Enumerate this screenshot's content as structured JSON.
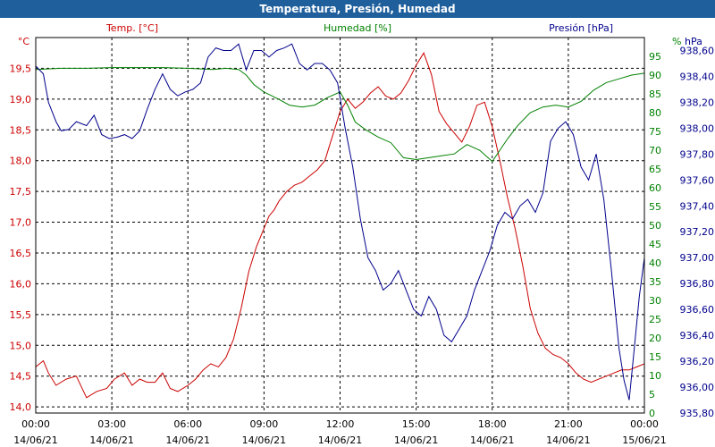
{
  "title": "Temperatura, Presión, Humedad",
  "chart_data": {
    "type": "line",
    "axes": {
      "temp": {
        "label": "Temp. [°C]",
        "unit": "°C",
        "min": 13.9,
        "max": 20.0,
        "ticks": [
          "14,0",
          "14,5",
          "15,0",
          "15,5",
          "16,0",
          "16,5",
          "17,0",
          "17,5",
          "18,0",
          "18,5",
          "19,0",
          "19,5"
        ],
        "tick_values": [
          14.0,
          14.5,
          15.0,
          15.5,
          16.0,
          16.5,
          17.0,
          17.5,
          18.0,
          18.5,
          19.0,
          19.5
        ],
        "color": "#cc0000"
      },
      "hum": {
        "label": "Humedad [%]",
        "unit": "%",
        "min": 0,
        "max": 100,
        "ticks": [
          "0",
          "5",
          "10",
          "15",
          "20",
          "25",
          "30",
          "35",
          "40",
          "45",
          "50",
          "55",
          "60",
          "65",
          "70",
          "75",
          "80",
          "85",
          "90",
          "95"
        ],
        "tick_values": [
          0,
          5,
          10,
          15,
          20,
          25,
          30,
          35,
          40,
          45,
          50,
          55,
          60,
          65,
          70,
          75,
          80,
          85,
          90,
          95
        ],
        "color": "#008000"
      },
      "pres": {
        "label": "Presión [hPa]",
        "unit": "hPa",
        "min": 935.8,
        "max": 938.7,
        "ticks": [
          "935,80",
          "936,00",
          "936,20",
          "936,40",
          "936,60",
          "936,80",
          "937,00",
          "937,20",
          "937,40",
          "937,60",
          "937,80",
          "938,00",
          "938,20",
          "938,40",
          "938,60"
        ],
        "tick_values": [
          935.8,
          936.0,
          936.2,
          936.4,
          936.6,
          936.8,
          937.0,
          937.2,
          937.4,
          937.6,
          937.8,
          938.0,
          938.2,
          938.4,
          938.6
        ],
        "color": "#00008b"
      }
    },
    "x_ticks": [
      {
        "time": "00:00",
        "date": "14/06/21",
        "h": 0
      },
      {
        "time": "03:00",
        "date": "14/06/21",
        "h": 3
      },
      {
        "time": "06:00",
        "date": "14/06/21",
        "h": 6
      },
      {
        "time": "09:00",
        "date": "14/06/21",
        "h": 9
      },
      {
        "time": "12:00",
        "date": "14/06/21",
        "h": 12
      },
      {
        "time": "15:00",
        "date": "14/06/21",
        "h": 15
      },
      {
        "time": "18:00",
        "date": "14/06/21",
        "h": 18
      },
      {
        "time": "21:00",
        "date": "14/06/21",
        "h": 21
      },
      {
        "time": "00:00",
        "date": "15/06/21",
        "h": 24
      }
    ],
    "grid": true,
    "series": [
      {
        "name": "Temp. [°C]",
        "axis": "temp",
        "color": "#cc0000",
        "x": [
          0,
          0.3,
          0.5,
          0.8,
          1.2,
          1.6,
          2.0,
          2.4,
          2.8,
          3.1,
          3.5,
          3.8,
          4.1,
          4.4,
          4.7,
          5.0,
          5.3,
          5.6,
          6.0,
          6.3,
          6.6,
          6.9,
          7.2,
          7.5,
          7.8,
          8.1,
          8.4,
          8.7,
          9.0,
          9.2,
          9.4,
          9.6,
          9.9,
          10.2,
          10.5,
          10.8,
          11.1,
          11.4,
          11.7,
          12.0,
          12.3,
          12.6,
          12.9,
          13.2,
          13.5,
          13.8,
          14.1,
          14.4,
          14.7,
          15.0,
          15.3,
          15.6,
          15.9,
          16.2,
          16.5,
          16.8,
          17.1,
          17.4,
          17.7,
          18.0,
          18.3,
          18.6,
          18.9,
          19.2,
          19.5,
          19.8,
          20.1,
          20.4,
          20.7,
          21.0,
          21.3,
          21.6,
          21.9,
          22.2,
          22.5,
          22.8,
          23.1,
          23.4,
          23.7,
          24.0
        ],
        "y": [
          14.65,
          14.75,
          14.55,
          14.35,
          14.45,
          14.5,
          14.15,
          14.25,
          14.3,
          14.45,
          14.55,
          14.35,
          14.45,
          14.4,
          14.4,
          14.55,
          14.3,
          14.25,
          14.35,
          14.45,
          14.6,
          14.7,
          14.65,
          14.8,
          15.1,
          15.6,
          16.2,
          16.6,
          16.9,
          17.1,
          17.2,
          17.35,
          17.5,
          17.6,
          17.65,
          17.75,
          17.85,
          18.0,
          18.4,
          18.8,
          19.0,
          18.85,
          18.95,
          19.1,
          19.2,
          19.05,
          19.0,
          19.1,
          19.3,
          19.55,
          19.75,
          19.4,
          18.8,
          18.6,
          18.45,
          18.3,
          18.55,
          18.9,
          18.95,
          18.55,
          18.0,
          17.4,
          16.9,
          16.3,
          15.6,
          15.2,
          14.95,
          14.85,
          14.8,
          14.7,
          14.55,
          14.45,
          14.4,
          14.45,
          14.5,
          14.55,
          14.6,
          14.6,
          14.65,
          14.7
        ]
      },
      {
        "name": "Humedad [%]",
        "axis": "hum",
        "color": "#008000",
        "x": [
          0,
          1,
          2,
          3,
          4,
          5,
          6,
          7,
          7.5,
          8.0,
          8.3,
          8.6,
          9.0,
          9.3,
          9.6,
          10.0,
          10.5,
          11.0,
          11.5,
          12.0,
          12.3,
          12.6,
          13.0,
          13.5,
          14.0,
          14.5,
          15.0,
          15.5,
          16.0,
          16.5,
          17.0,
          17.5,
          18.0,
          18.3,
          18.6,
          19.0,
          19.5,
          20.0,
          20.5,
          21.0,
          21.5,
          22.0,
          22.5,
          23.0,
          23.5,
          24.0
        ],
        "y": [
          91.5,
          91.8,
          91.8,
          92.0,
          92.0,
          92.0,
          91.8,
          91.5,
          91.8,
          91.5,
          90.0,
          87.5,
          85.5,
          84.5,
          83.5,
          82.0,
          81.5,
          82.0,
          84.0,
          85.5,
          82.0,
          77.5,
          75.5,
          73.5,
          72.0,
          68.0,
          67.5,
          68.0,
          68.5,
          69.0,
          71.5,
          70.0,
          67.0,
          70.0,
          73.0,
          76.5,
          80.0,
          81.5,
          82.0,
          81.5,
          83.0,
          86.0,
          88.0,
          89.0,
          90.0,
          90.5
        ]
      },
      {
        "name": "Presión [hPa]",
        "axis": "pres",
        "color": "#00008b",
        "x": [
          0,
          0.3,
          0.5,
          0.8,
          1.0,
          1.3,
          1.6,
          2.0,
          2.3,
          2.6,
          2.9,
          3.2,
          3.5,
          3.8,
          4.1,
          4.4,
          4.7,
          5.0,
          5.3,
          5.6,
          5.9,
          6.2,
          6.5,
          6.8,
          7.1,
          7.4,
          7.7,
          8.0,
          8.3,
          8.6,
          8.9,
          9.2,
          9.5,
          9.8,
          10.1,
          10.4,
          10.7,
          11.0,
          11.3,
          11.6,
          11.9,
          12.2,
          12.5,
          12.8,
          13.1,
          13.4,
          13.7,
          14.0,
          14.3,
          14.6,
          14.9,
          15.2,
          15.5,
          15.8,
          16.1,
          16.4,
          16.7,
          17.0,
          17.3,
          17.6,
          17.9,
          18.2,
          18.5,
          18.8,
          19.1,
          19.4,
          19.7,
          20.0,
          20.3,
          20.6,
          20.9,
          21.2,
          21.5,
          21.8,
          22.1,
          22.4,
          22.7,
          23.0,
          23.2,
          23.4,
          23.6,
          23.8,
          24.0
        ],
        "y": [
          938.48,
          938.42,
          938.2,
          938.05,
          937.98,
          937.99,
          938.05,
          938.02,
          938.1,
          937.95,
          937.92,
          937.93,
          937.95,
          937.92,
          937.98,
          938.15,
          938.3,
          938.42,
          938.3,
          938.25,
          938.28,
          938.3,
          938.35,
          938.55,
          938.62,
          938.6,
          938.6,
          938.65,
          938.45,
          938.6,
          938.6,
          938.55,
          938.6,
          938.62,
          938.65,
          938.5,
          938.45,
          938.5,
          938.5,
          938.45,
          938.35,
          938.0,
          937.7,
          937.3,
          937.0,
          936.9,
          936.75,
          936.8,
          936.9,
          936.75,
          936.6,
          936.55,
          936.7,
          936.6,
          936.4,
          936.35,
          936.45,
          936.55,
          936.75,
          936.9,
          937.05,
          937.25,
          937.35,
          937.3,
          937.4,
          937.45,
          937.35,
          937.5,
          937.9,
          938.0,
          938.05,
          937.95,
          937.7,
          937.6,
          937.8,
          937.45,
          936.9,
          936.3,
          936.05,
          935.9,
          936.3,
          936.7,
          937.0
        ]
      }
    ]
  }
}
